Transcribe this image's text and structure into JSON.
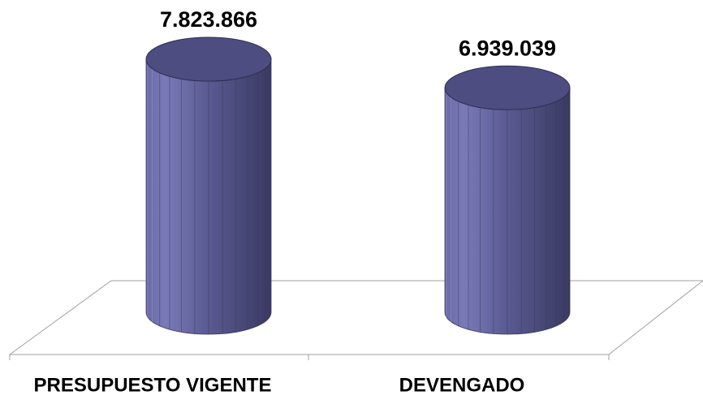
{
  "chart_data": {
    "type": "cylinder",
    "categories": [
      "PRESUPUESTO VIGENTE",
      "DEVENGADO"
    ],
    "values": [
      7823866,
      6939039
    ],
    "value_labels": [
      "7.823.866",
      "6.939.039"
    ],
    "color": "#5b5b94"
  }
}
